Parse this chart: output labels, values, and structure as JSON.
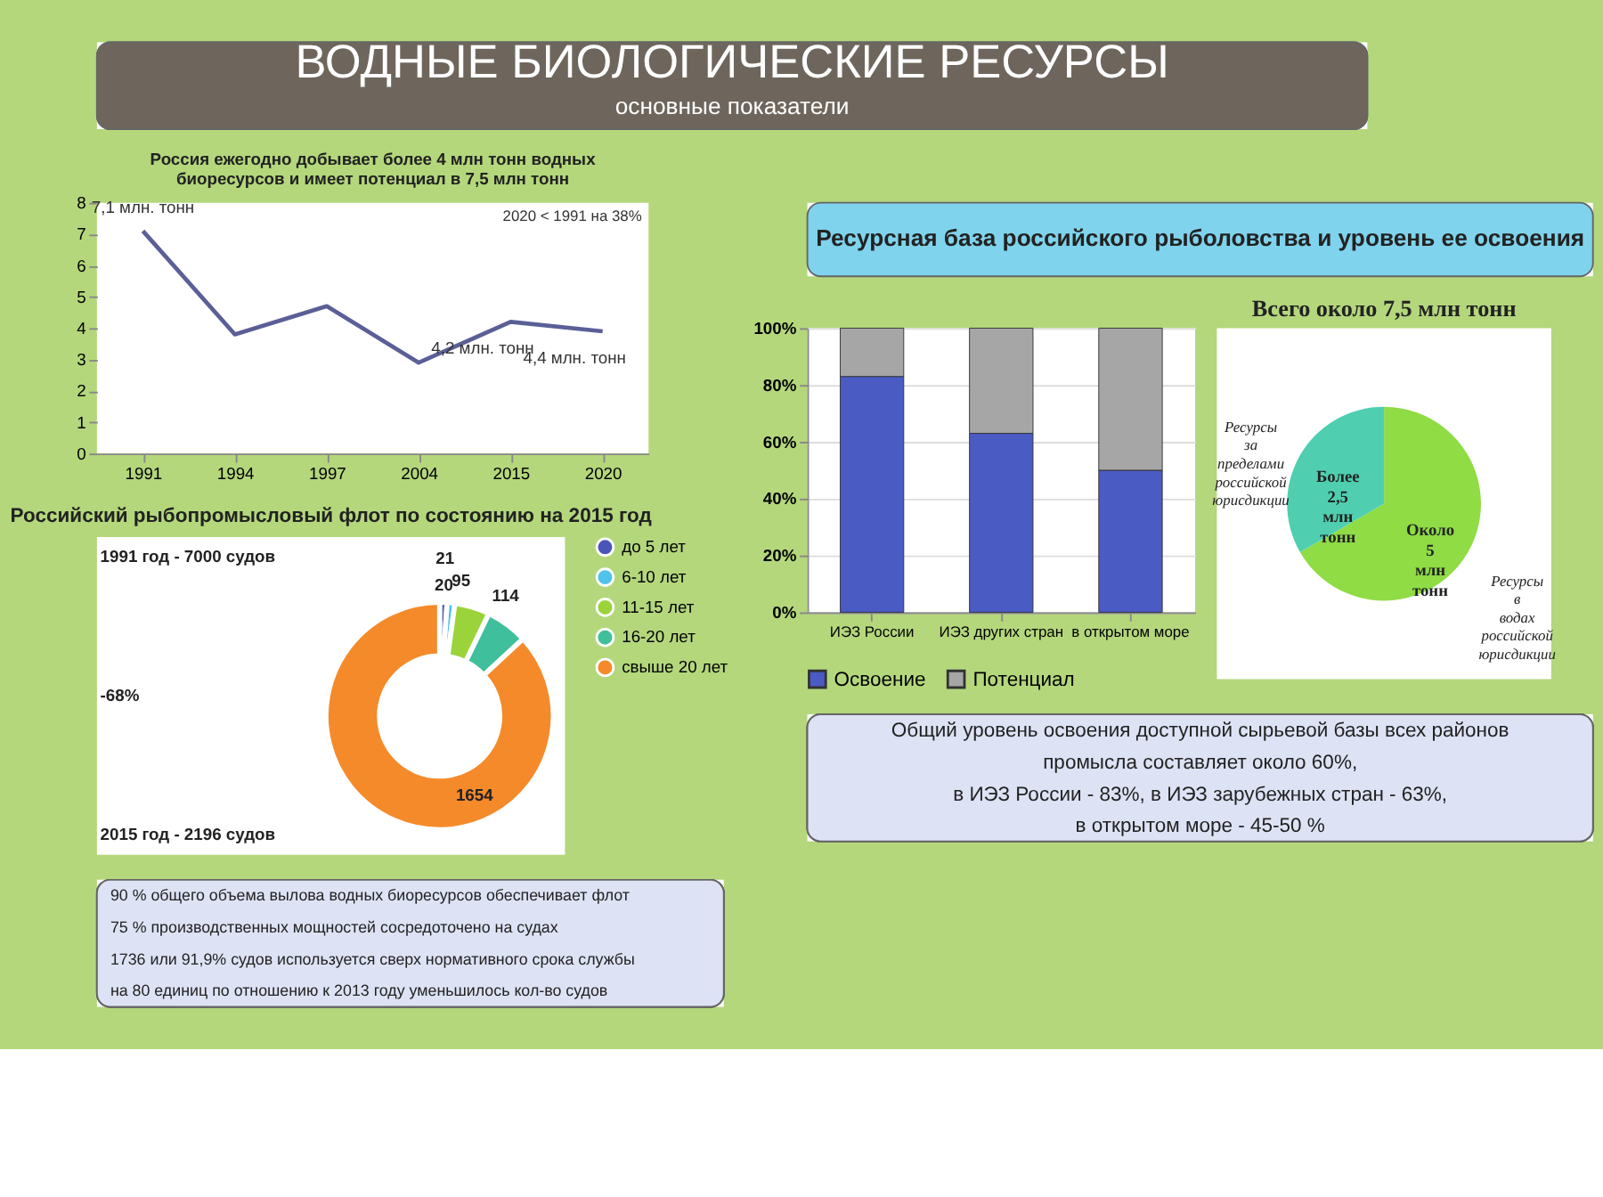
{
  "chart_data": [
    {
      "type": "other",
      "title": "ВОДНЫЕ БИОЛОГИЧЕСКИЕ РЕСУРСЫ",
      "subtitle": "основные показатели"
    },
    {
      "type": "line",
      "title": "Россия ежегодно добывает более 4 млн тонн водных биоресурсов и имеет потенциал в 7,5 млн тонн",
      "categories": [
        "1991",
        "1994",
        "1997",
        "2004",
        "2015",
        "2020"
      ],
      "values": [
        7.1,
        3.8,
        4.7,
        2.9,
        4.2,
        3.9
      ],
      "color": "#5b5f97",
      "ylim": [
        0,
        8
      ],
      "yticks": [
        0,
        1,
        2,
        3,
        4,
        5,
        6,
        7,
        8
      ],
      "grid": false,
      "marker": "none",
      "line_style": "solid",
      "annotations": [
        {
          "text": "7,1 млн. тонн",
          "x": "1991",
          "y": 7.1
        },
        {
          "text": "4,2 млн. тонн",
          "x": "2015",
          "y": 4.2
        },
        {
          "text": "4,4 млн. тонн",
          "x": "2020",
          "y": 3.9
        },
        "2020 < 1991 на 38%"
      ]
    },
    {
      "type": "donut",
      "title": "Российский рыбопромысловый флот по состоянию на 2015 год",
      "categories": [
        "до 5 лет",
        "6-10 лет",
        "11-15 лет",
        "16-20 лет",
        "свыше 20 лет"
      ],
      "values": [
        20,
        21,
        95,
        114,
        1654
      ],
      "colors": [
        "#4b55b8",
        "#4fc3ea",
        "#9ad43a",
        "#3fbf9b",
        "#f58a2a"
      ],
      "data_labels": true,
      "legend": "right",
      "annotations": [
        "1991 год - 7000 судов",
        "-68%",
        "2015 год - 2196 судов"
      ]
    },
    {
      "type": "other",
      "annotations": [
        "90 % общего объема вылова водных биоресурсов обеспечивает флот",
        "75 % производственных мощностей сосредоточено на судах",
        "1736 или 91,9% судов используется сверх нормативного срока службы",
        "на 80 единиц по отношению к 2013 году уменьшилось кол-во судов"
      ]
    },
    {
      "type": "other",
      "title": "Ресурсная база российского рыболовства и уровень ее освоения"
    },
    {
      "type": "bar",
      "stacked": true,
      "categories": [
        "ИЭЗ России",
        "ИЭЗ других стран",
        "в открытом море"
      ],
      "series": [
        {
          "name": "Освоение",
          "color": "#4a5bc4",
          "values": [
            83,
            63,
            50
          ]
        },
        {
          "name": "Потенциал",
          "color": "#a6a6a6",
          "values": [
            17,
            37,
            50
          ]
        }
      ],
      "ylim": [
        0,
        100
      ],
      "yticks": [
        {
          "value": 0,
          "label": "0%"
        },
        {
          "value": 20,
          "label": "20%"
        },
        {
          "value": 40,
          "label": "40%"
        },
        {
          "value": 60,
          "label": "60%"
        },
        {
          "value": 80,
          "label": "80%"
        },
        {
          "value": 100,
          "label": "100%"
        }
      ],
      "grid": "y",
      "legend": "bottom"
    },
    {
      "type": "pie",
      "title": "Всего около 7,5 млн тонн",
      "categories": [
        "Ресурсы в водах российской юрисдикции",
        "Ресурсы за пределами российской юрисдикции"
      ],
      "values": [
        5,
        2.5
      ],
      "colors": [
        "#8fdc45",
        "#4fcfb0"
      ],
      "value_labels": [
        "Около 5 млн тонн",
        "Более 2,5 млн тонн"
      ]
    },
    {
      "type": "other",
      "annotations": [
        "Общий уровень освоения доступной сырьевой базы всех районов",
        "промысла составляет около 60%,",
        "в ИЭЗ России - 83%, в ИЭЗ  зарубежных стран - 63%,",
        "в открытом море - 45-50 %"
      ]
    }
  ]
}
